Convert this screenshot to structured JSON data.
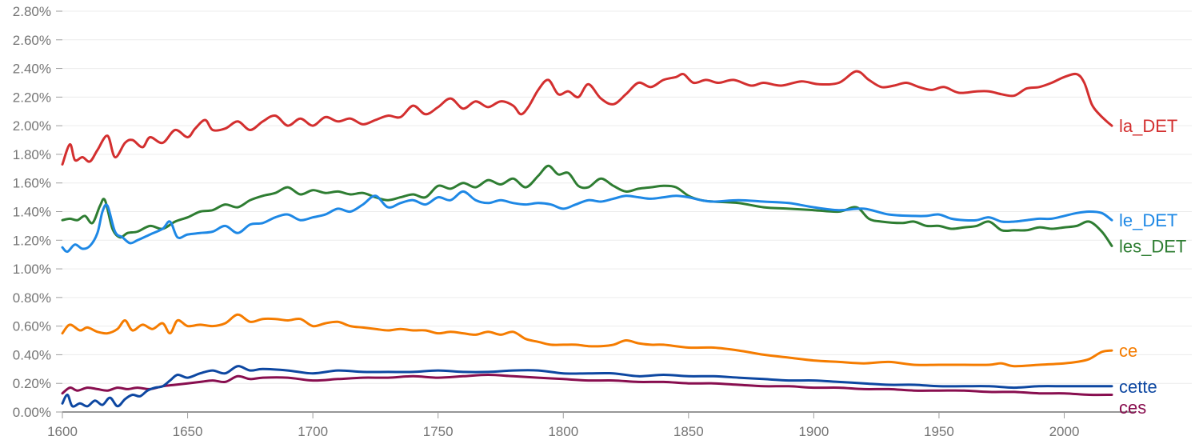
{
  "chart_data": {
    "type": "line",
    "title": "",
    "xlabel": "",
    "ylabel": "",
    "xlim": [
      1600,
      2019
    ],
    "ylim": [
      0,
      0.028
    ],
    "grid": true,
    "legend": "inline labels at right end of each line",
    "x_ticks": [
      1600,
      1650,
      1700,
      1750,
      1800,
      1850,
      1900,
      1950,
      2000
    ],
    "x_tick_labels": [
      "1600",
      "1650",
      "1700",
      "1750",
      "1800",
      "1850",
      "1900",
      "1950",
      "2000"
    ],
    "y_ticks": [
      0,
      0.002,
      0.004,
      0.006,
      0.008,
      0.01,
      0.012,
      0.014,
      0.016,
      0.018,
      0.02,
      0.022,
      0.024,
      0.026,
      0.028
    ],
    "y_tick_labels": [
      "0.00%",
      "0.20%",
      "0.40%",
      "0.60%",
      "0.80%",
      "1.00%",
      "1.20%",
      "1.40%",
      "1.60%",
      "1.80%",
      "2.00%",
      "2.20%",
      "2.40%",
      "2.60%",
      "2.80%"
    ],
    "series": [
      {
        "name": "la_DET",
        "color": "#d32f2f",
        "x": [
          1600,
          1603,
          1605,
          1608,
          1611,
          1614,
          1618,
          1621,
          1625,
          1628,
          1632,
          1635,
          1640,
          1645,
          1650,
          1653,
          1657,
          1660,
          1665,
          1670,
          1675,
          1680,
          1685,
          1690,
          1695,
          1700,
          1705,
          1710,
          1715,
          1720,
          1725,
          1730,
          1735,
          1740,
          1745,
          1750,
          1755,
          1760,
          1765,
          1770,
          1775,
          1780,
          1783,
          1786,
          1790,
          1794,
          1798,
          1802,
          1806,
          1810,
          1815,
          1820,
          1825,
          1830,
          1835,
          1840,
          1845,
          1848,
          1852,
          1857,
          1862,
          1868,
          1875,
          1880,
          1887,
          1895,
          1902,
          1910,
          1917,
          1922,
          1927,
          1932,
          1937,
          1942,
          1947,
          1952,
          1958,
          1965,
          1970,
          1975,
          1980,
          1985,
          1990,
          1995,
          2000,
          2005,
          2008,
          2011,
          2014,
          2017,
          2019
        ],
        "y": [
          0.0173,
          0.0187,
          0.0176,
          0.0178,
          0.0175,
          0.0183,
          0.0193,
          0.0178,
          0.0188,
          0.019,
          0.0185,
          0.0192,
          0.0188,
          0.0197,
          0.0192,
          0.0198,
          0.0204,
          0.0197,
          0.0198,
          0.0203,
          0.0197,
          0.0203,
          0.0207,
          0.02,
          0.0205,
          0.02,
          0.0206,
          0.0203,
          0.0205,
          0.0201,
          0.0204,
          0.0207,
          0.0206,
          0.0214,
          0.0208,
          0.0213,
          0.0219,
          0.0212,
          0.0217,
          0.0213,
          0.0217,
          0.0214,
          0.0208,
          0.0213,
          0.0225,
          0.0232,
          0.0222,
          0.0224,
          0.022,
          0.0229,
          0.0219,
          0.0215,
          0.0222,
          0.023,
          0.0227,
          0.0232,
          0.0234,
          0.0236,
          0.023,
          0.0232,
          0.023,
          0.0232,
          0.0228,
          0.023,
          0.0228,
          0.0231,
          0.0229,
          0.023,
          0.0238,
          0.0232,
          0.0227,
          0.0228,
          0.023,
          0.0227,
          0.0225,
          0.0227,
          0.0223,
          0.0224,
          0.0224,
          0.0222,
          0.0221,
          0.0226,
          0.0227,
          0.023,
          0.0234,
          0.0236,
          0.023,
          0.0215,
          0.0208,
          0.0203,
          0.02
        ]
      },
      {
        "name": "le_DET",
        "color": "#1e88e5",
        "x": [
          1600,
          1602,
          1605,
          1608,
          1611,
          1614,
          1616,
          1618,
          1621,
          1624,
          1627,
          1630,
          1635,
          1640,
          1643,
          1646,
          1650,
          1655,
          1660,
          1665,
          1670,
          1675,
          1680,
          1685,
          1690,
          1695,
          1700,
          1705,
          1710,
          1715,
          1720,
          1725,
          1730,
          1735,
          1740,
          1745,
          1750,
          1755,
          1760,
          1765,
          1770,
          1775,
          1780,
          1785,
          1790,
          1795,
          1800,
          1805,
          1810,
          1815,
          1820,
          1825,
          1830,
          1835,
          1840,
          1845,
          1850,
          1855,
          1860,
          1870,
          1880,
          1890,
          1900,
          1910,
          1920,
          1930,
          1940,
          1945,
          1950,
          1955,
          1960,
          1965,
          1970,
          1975,
          1980,
          1985,
          1990,
          1995,
          2000,
          2005,
          2010,
          2015,
          2019
        ],
        "y": [
          0.0115,
          0.0112,
          0.0117,
          0.0114,
          0.0116,
          0.0125,
          0.014,
          0.0144,
          0.0126,
          0.0122,
          0.0118,
          0.012,
          0.0124,
          0.0128,
          0.0133,
          0.0122,
          0.0124,
          0.0125,
          0.0126,
          0.013,
          0.0125,
          0.0131,
          0.0132,
          0.0136,
          0.0138,
          0.0134,
          0.0136,
          0.0138,
          0.0142,
          0.014,
          0.0145,
          0.0151,
          0.0143,
          0.0146,
          0.0148,
          0.0145,
          0.015,
          0.0148,
          0.0154,
          0.0148,
          0.0146,
          0.0148,
          0.0146,
          0.0145,
          0.0146,
          0.0145,
          0.0142,
          0.0145,
          0.0148,
          0.0147,
          0.0149,
          0.0151,
          0.015,
          0.0149,
          0.015,
          0.0151,
          0.015,
          0.0148,
          0.0147,
          0.0148,
          0.0147,
          0.0146,
          0.0143,
          0.0141,
          0.0142,
          0.0138,
          0.0137,
          0.0137,
          0.0138,
          0.0135,
          0.0134,
          0.0134,
          0.0136,
          0.0133,
          0.0133,
          0.0134,
          0.0135,
          0.0135,
          0.0137,
          0.0139,
          0.014,
          0.0139,
          0.0134
        ]
      },
      {
        "name": "les_DET",
        "color": "#2e7d32",
        "x": [
          1600,
          1603,
          1606,
          1609,
          1612,
          1615,
          1617,
          1620,
          1623,
          1626,
          1630,
          1635,
          1640,
          1645,
          1650,
          1655,
          1660,
          1665,
          1670,
          1675,
          1680,
          1685,
          1690,
          1695,
          1700,
          1705,
          1710,
          1715,
          1720,
          1725,
          1730,
          1735,
          1740,
          1745,
          1750,
          1755,
          1760,
          1765,
          1770,
          1775,
          1780,
          1785,
          1790,
          1794,
          1798,
          1802,
          1806,
          1810,
          1815,
          1820,
          1825,
          1830,
          1835,
          1840,
          1845,
          1850,
          1855,
          1860,
          1870,
          1880,
          1890,
          1900,
          1910,
          1917,
          1922,
          1927,
          1935,
          1940,
          1945,
          1950,
          1955,
          1960,
          1965,
          1970,
          1975,
          1980,
          1985,
          1990,
          1995,
          2000,
          2005,
          2010,
          2015,
          2019
        ],
        "y": [
          0.0134,
          0.0135,
          0.0134,
          0.0137,
          0.0132,
          0.0144,
          0.0148,
          0.0128,
          0.0122,
          0.0125,
          0.0126,
          0.013,
          0.0128,
          0.0133,
          0.0136,
          0.014,
          0.0141,
          0.0145,
          0.0143,
          0.0148,
          0.0151,
          0.0153,
          0.0157,
          0.0152,
          0.0155,
          0.0153,
          0.0154,
          0.0152,
          0.0153,
          0.015,
          0.0148,
          0.015,
          0.0152,
          0.015,
          0.0158,
          0.0156,
          0.016,
          0.0157,
          0.0162,
          0.0159,
          0.0163,
          0.0157,
          0.0165,
          0.0172,
          0.0166,
          0.0167,
          0.0158,
          0.0157,
          0.0163,
          0.0158,
          0.0154,
          0.0156,
          0.0157,
          0.0158,
          0.0157,
          0.0151,
          0.0148,
          0.0147,
          0.0146,
          0.0143,
          0.0142,
          0.0141,
          0.014,
          0.0143,
          0.0135,
          0.0133,
          0.0132,
          0.0133,
          0.013,
          0.013,
          0.0128,
          0.0129,
          0.013,
          0.0133,
          0.0127,
          0.0127,
          0.0127,
          0.0129,
          0.0128,
          0.0129,
          0.013,
          0.0133,
          0.0126,
          0.0116
        ]
      },
      {
        "name": "ce",
        "color": "#f57c00",
        "x": [
          1600,
          1603,
          1607,
          1610,
          1614,
          1618,
          1622,
          1625,
          1628,
          1632,
          1636,
          1640,
          1643,
          1646,
          1650,
          1655,
          1660,
          1665,
          1670,
          1675,
          1680,
          1685,
          1690,
          1695,
          1700,
          1705,
          1710,
          1715,
          1720,
          1725,
          1730,
          1735,
          1740,
          1745,
          1750,
          1755,
          1760,
          1765,
          1770,
          1775,
          1780,
          1785,
          1790,
          1795,
          1800,
          1805,
          1810,
          1815,
          1820,
          1825,
          1830,
          1835,
          1840,
          1850,
          1860,
          1870,
          1880,
          1890,
          1900,
          1910,
          1920,
          1930,
          1940,
          1950,
          1960,
          1970,
          1975,
          1980,
          1990,
          2000,
          2005,
          2010,
          2015,
          2019
        ],
        "y": [
          0.0055,
          0.0061,
          0.0057,
          0.0059,
          0.0056,
          0.0055,
          0.0058,
          0.0064,
          0.0057,
          0.0061,
          0.0058,
          0.0062,
          0.0055,
          0.0064,
          0.006,
          0.0061,
          0.006,
          0.0062,
          0.0068,
          0.0063,
          0.0065,
          0.0065,
          0.0064,
          0.0065,
          0.006,
          0.0062,
          0.0063,
          0.006,
          0.0059,
          0.0058,
          0.0057,
          0.0058,
          0.0057,
          0.0057,
          0.0055,
          0.0056,
          0.0055,
          0.0054,
          0.0056,
          0.0054,
          0.0056,
          0.0051,
          0.0049,
          0.0047,
          0.0047,
          0.0047,
          0.0046,
          0.0046,
          0.0047,
          0.005,
          0.0048,
          0.0047,
          0.0047,
          0.0045,
          0.0045,
          0.0043,
          0.004,
          0.0038,
          0.0036,
          0.0035,
          0.0034,
          0.0035,
          0.0033,
          0.0033,
          0.0033,
          0.0033,
          0.0034,
          0.0032,
          0.0033,
          0.0034,
          0.0035,
          0.0037,
          0.0042,
          0.0043
        ]
      },
      {
        "name": "cette",
        "color": "#0d47a1",
        "x": [
          1600,
          1602,
          1604,
          1607,
          1610,
          1613,
          1616,
          1619,
          1622,
          1625,
          1628,
          1631,
          1634,
          1637,
          1640,
          1643,
          1646,
          1650,
          1655,
          1660,
          1665,
          1670,
          1675,
          1680,
          1690,
          1700,
          1710,
          1720,
          1730,
          1740,
          1750,
          1760,
          1770,
          1780,
          1790,
          1800,
          1810,
          1820,
          1830,
          1840,
          1850,
          1860,
          1870,
          1880,
          1890,
          1900,
          1910,
          1920,
          1930,
          1940,
          1950,
          1960,
          1970,
          1980,
          1990,
          2000,
          2010,
          2019
        ],
        "y": [
          0.0006,
          0.0012,
          0.0004,
          0.0006,
          0.0004,
          0.0008,
          0.0005,
          0.001,
          0.0004,
          0.0009,
          0.0012,
          0.0011,
          0.0015,
          0.0017,
          0.0018,
          0.0022,
          0.0026,
          0.0024,
          0.0027,
          0.0029,
          0.0027,
          0.0032,
          0.0029,
          0.003,
          0.0029,
          0.0027,
          0.0029,
          0.0028,
          0.0028,
          0.0028,
          0.0029,
          0.0028,
          0.0028,
          0.0029,
          0.0029,
          0.0027,
          0.0027,
          0.0027,
          0.0025,
          0.0026,
          0.0025,
          0.0025,
          0.0024,
          0.0023,
          0.0022,
          0.0022,
          0.0021,
          0.002,
          0.0019,
          0.0019,
          0.0018,
          0.0018,
          0.0018,
          0.0017,
          0.0018,
          0.0018,
          0.0018,
          0.0018
        ]
      },
      {
        "name": "ces",
        "color": "#880e4f",
        "x": [
          1600,
          1603,
          1606,
          1610,
          1614,
          1618,
          1622,
          1626,
          1630,
          1635,
          1640,
          1645,
          1650,
          1655,
          1660,
          1665,
          1670,
          1675,
          1680,
          1690,
          1700,
          1710,
          1720,
          1730,
          1740,
          1750,
          1760,
          1770,
          1780,
          1790,
          1800,
          1810,
          1820,
          1830,
          1840,
          1850,
          1860,
          1870,
          1880,
          1890,
          1900,
          1910,
          1920,
          1930,
          1940,
          1950,
          1960,
          1970,
          1980,
          1990,
          2000,
          2010,
          2019
        ],
        "y": [
          0.0013,
          0.0017,
          0.0015,
          0.0017,
          0.0016,
          0.0015,
          0.0017,
          0.0016,
          0.0017,
          0.0016,
          0.0018,
          0.0019,
          0.002,
          0.0021,
          0.0022,
          0.0021,
          0.0025,
          0.0023,
          0.0024,
          0.0024,
          0.0022,
          0.0023,
          0.0024,
          0.0024,
          0.0025,
          0.0024,
          0.0025,
          0.0026,
          0.0025,
          0.0024,
          0.0023,
          0.0022,
          0.0022,
          0.0021,
          0.0021,
          0.002,
          0.002,
          0.0019,
          0.0018,
          0.0018,
          0.0017,
          0.0017,
          0.0016,
          0.0016,
          0.0015,
          0.0015,
          0.0015,
          0.0014,
          0.0014,
          0.0013,
          0.0013,
          0.0012,
          0.0012
        ]
      }
    ]
  }
}
